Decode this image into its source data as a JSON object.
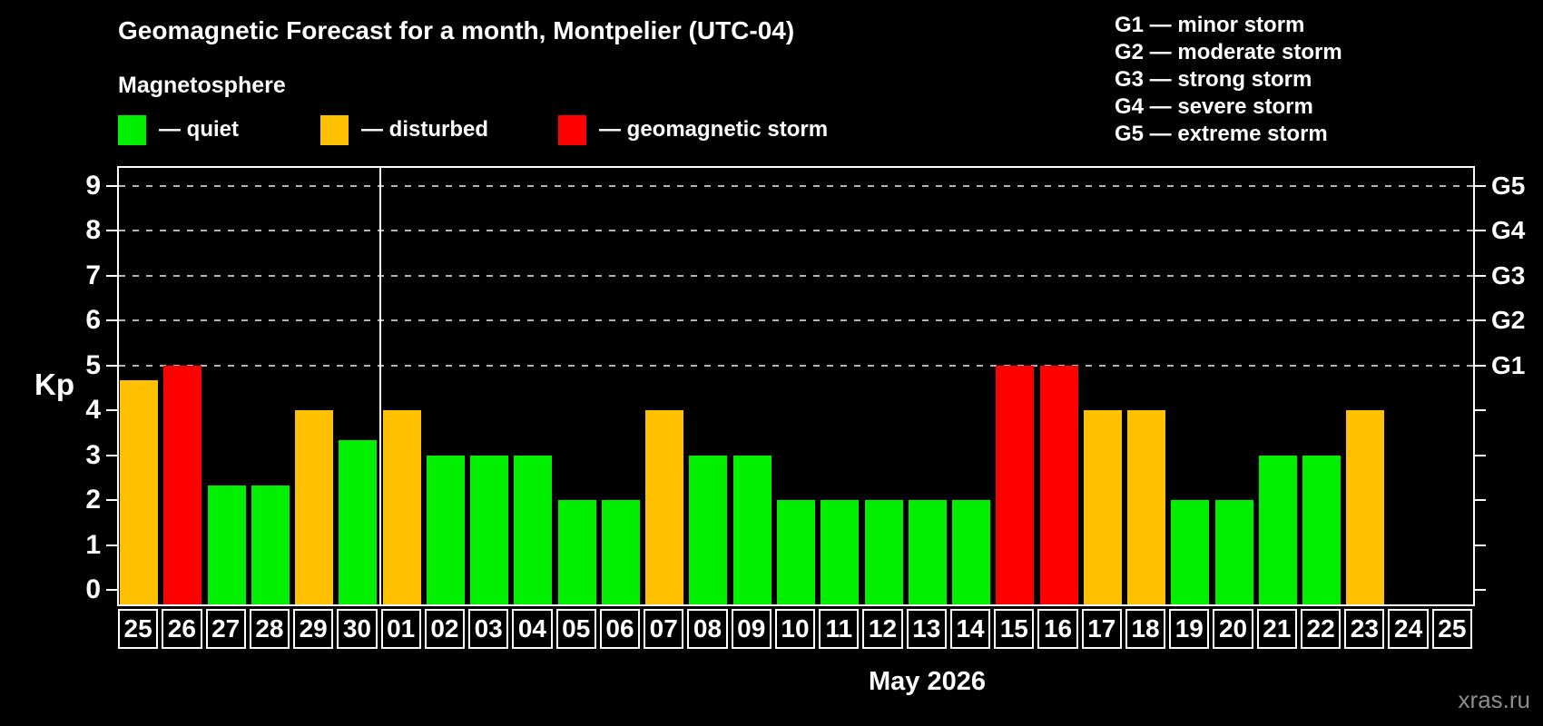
{
  "page": {
    "watermark": "xras.ru"
  },
  "header": {
    "legend": [
      {
        "status": "quiet",
        "label": "— quiet",
        "color": "#00f000"
      },
      {
        "status": "disturbed",
        "label": "— disturbed",
        "color": "#ffc000"
      },
      {
        "status": "storm",
        "label": "— geomagnetic storm",
        "color": "#ff0000"
      }
    ],
    "g_scale": [
      "G1 — minor storm",
      "G2 — moderate storm",
      "G3 — strong storm",
      "G4 — severe storm",
      "G5 — extreme storm"
    ]
  },
  "chart_data": {
    "type": "bar",
    "title": "Geomagnetic Forecast for a month, Montpelier (UTC-04)",
    "subtitle": "Magnetosphere",
    "xlabel": "May 2026",
    "ylabel": "Kp",
    "ylim": [
      -0.36,
      9.44
    ],
    "yticks": [
      0,
      1,
      2,
      3,
      4,
      5,
      6,
      7,
      8,
      9
    ],
    "gridlines_at": [
      5,
      6,
      7,
      8,
      9
    ],
    "right_axis_labels": {
      "5": "G1",
      "6": "G2",
      "7": "G3",
      "8": "G4",
      "9": "G5"
    },
    "month_divider_after_index": 5,
    "categories": [
      "25",
      "26",
      "27",
      "28",
      "29",
      "30",
      "01",
      "02",
      "03",
      "04",
      "05",
      "06",
      "07",
      "08",
      "09",
      "10",
      "11",
      "12",
      "13",
      "14",
      "15",
      "16",
      "17",
      "18",
      "19",
      "20",
      "21",
      "22",
      "23",
      "24",
      "25"
    ],
    "values": [
      4.67,
      5,
      2.33,
      2.33,
      4,
      3.33,
      4,
      3,
      3,
      3,
      2,
      2,
      4,
      3,
      3,
      2,
      2,
      2,
      2,
      2,
      5,
      5,
      4,
      4,
      2,
      2,
      3,
      3,
      4,
      null,
      null
    ],
    "statuses": [
      "disturbed",
      "storm",
      "quiet",
      "quiet",
      "disturbed",
      "quiet",
      "disturbed",
      "quiet",
      "quiet",
      "quiet",
      "quiet",
      "quiet",
      "disturbed",
      "quiet",
      "quiet",
      "quiet",
      "quiet",
      "quiet",
      "quiet",
      "quiet",
      "storm",
      "storm",
      "disturbed",
      "disturbed",
      "quiet",
      "quiet",
      "quiet",
      "quiet",
      "disturbed",
      null,
      null
    ],
    "colors": {
      "quiet": "#00f000",
      "disturbed": "#ffc000",
      "storm": "#ff0000"
    },
    "legend_position": "top-left",
    "grid": "dashed-horizontal-upper-half-only"
  }
}
